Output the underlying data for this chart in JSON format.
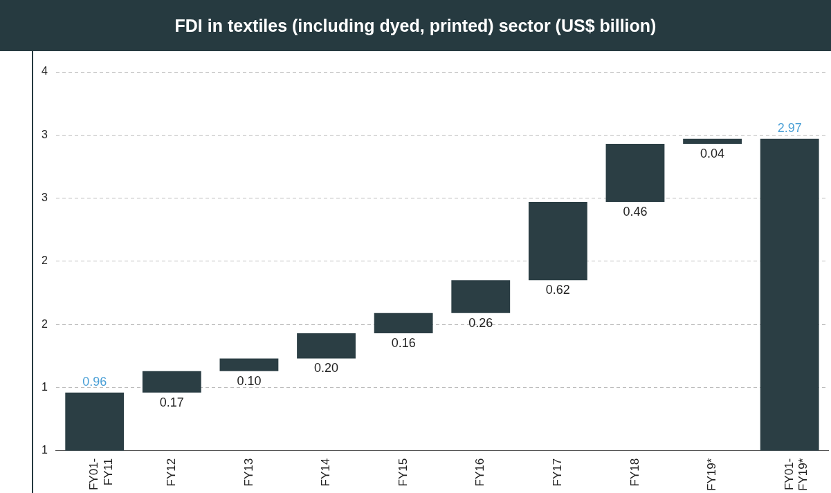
{
  "chart_data": {
    "type": "bar",
    "title": "FDI in textiles (including dyed, printed) sector (US$ billion)",
    "categories": [
      "FY01-FY11",
      "FY12",
      "FY13",
      "FY14",
      "FY15",
      "FY16",
      "FY17",
      "FY18",
      "FY19*",
      "FY01-FY19*"
    ],
    "values": [
      0.96,
      0.17,
      0.1,
      0.2,
      0.16,
      0.26,
      0.62,
      0.46,
      0.04,
      2.97
    ],
    "base": [
      null,
      0.96,
      1.13,
      1.23,
      1.43,
      1.59,
      1.85,
      2.47,
      2.93,
      null
    ],
    "value_labels": [
      "0.96",
      "0.17",
      "0.10",
      "0.20",
      "0.16",
      "0.26",
      "0.62",
      "0.46",
      "0.04",
      "2.97"
    ],
    "color": "#2b3e44",
    "ylim": [
      0.5,
      3.5
    ],
    "yticks": [
      {
        "value": 0.5,
        "label": "1"
      },
      {
        "value": 1.0,
        "label": "1"
      },
      {
        "value": 1.5,
        "label": "2"
      },
      {
        "value": 2.0,
        "label": "2"
      },
      {
        "value": 2.5,
        "label": "3"
      },
      {
        "value": 3.0,
        "label": "3"
      },
      {
        "value": 3.5,
        "label": "4"
      }
    ],
    "grid": "y",
    "legend": false
  }
}
